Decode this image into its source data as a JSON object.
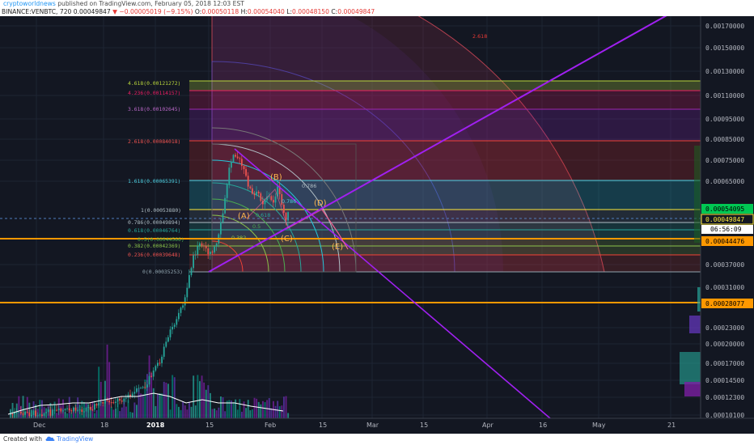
{
  "header": {
    "author": "cryptoworldnews",
    "published_text": " published on TradingView.com, February 05, 2018 12:03 EST",
    "symbol": "BINANCE:VENBTC, 720",
    "last": "0.00049847",
    "change": "−0.00005019 (−9.15%)",
    "o_label": "O:",
    "o_value": "0.00050118",
    "h_label": "H:",
    "h_value": "0.00054040",
    "l_label": "L:",
    "l_value": "0.00048150",
    "c_label": "C:",
    "c_value": "0.00049847"
  },
  "price_axis": {
    "ticks": [
      "0.00170000",
      "0.00150000",
      "0.00130000",
      "0.00110000",
      "0.00095000",
      "0.00085000",
      "0.00075000",
      "0.00065000",
      "0.00037000",
      "0.00031000",
      "0.00023000",
      "0.00020000",
      "0.00017000",
      "0.00014500",
      "0.00012300",
      "0.00010100"
    ],
    "badges": {
      "level_1": "0.00054095",
      "current": "0.00049847",
      "countdown": "06:56:09",
      "level_2": "0.00044476",
      "level_3": "0.00028077"
    }
  },
  "time_axis": {
    "labels": [
      "Dec",
      "18",
      "2018",
      "15",
      "Feb",
      "15",
      "Mar",
      "15",
      "Apr",
      "16",
      "May",
      "21"
    ]
  },
  "fib_levels": [
    {
      "label": "4.618(0.00121272)",
      "color": "#b8d53b"
    },
    {
      "label": "4.236(0.00114157)",
      "color": "#e91e63"
    },
    {
      "label": "3.618(0.00102645)",
      "color": "#9c27b0"
    },
    {
      "label": "2.618(0.00084018)",
      "color": "#f44336"
    },
    {
      "label": "1.618(0.00065391)",
      "color": "#4dd0e1"
    },
    {
      "label": "1(0.00053880)",
      "color": "#b0bec5"
    },
    {
      "label": "0.786(0.00049894)",
      "color": "#b0bec5"
    },
    {
      "label": "0.618(0.00046764)",
      "color": "#26a69a"
    },
    {
      "label": "0.5(0.00044566)",
      "color": "#4caf50"
    },
    {
      "label": "0.382(0.00042369)",
      "color": "#8bc34a"
    },
    {
      "label": "0.236(0.00039648)",
      "color": "#f44336"
    },
    {
      "label": "0(0.00035253)",
      "color": "#90a4ae"
    }
  ],
  "fan_labels": [
    "2.618",
    "0.786",
    "0.5",
    "0.382",
    "0.618",
    "0.786"
  ],
  "wave_labels": [
    "(A)",
    "(B)",
    "(C)",
    "(D)",
    "(E)"
  ],
  "footer": {
    "created_with": "Created with",
    "brand": "TradingView"
  },
  "colors": {
    "background": "#131722",
    "candle_up": "#26a69a",
    "candle_down": "#ef5350",
    "trendline": "#a020f0",
    "orange_line": "#ff9800",
    "wave_label": "#ffb74d"
  }
}
